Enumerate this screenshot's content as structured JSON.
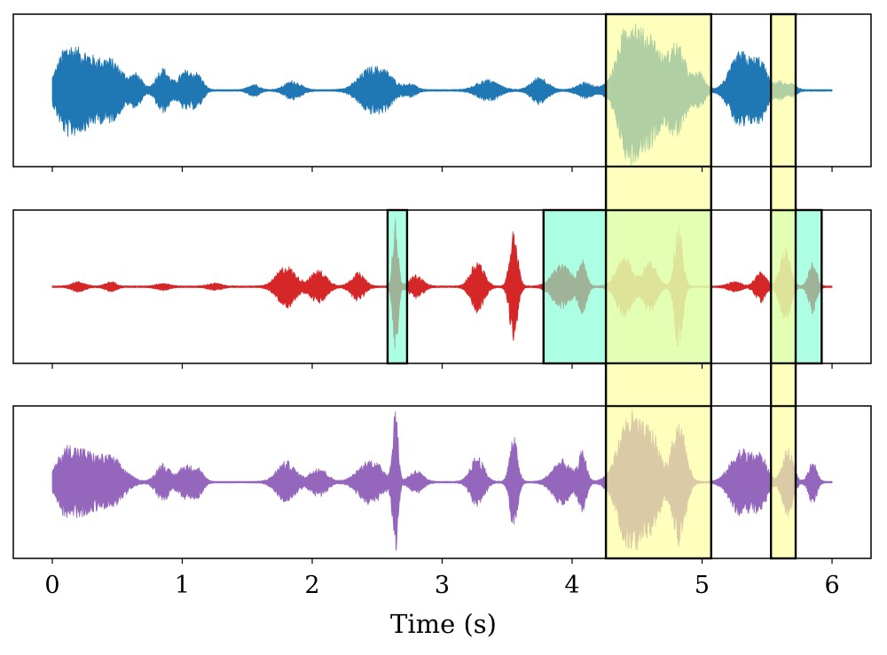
{
  "chart_data": {
    "type": "line",
    "description_style": "audio waveforms",
    "xlabel": "Time (s)",
    "xlim": [
      -0.3,
      6.3
    ],
    "xticks": [
      0,
      1,
      2,
      3,
      4,
      5,
      6
    ],
    "yticks_visible": false,
    "grid": false,
    "legend": "none",
    "panels": [
      {
        "color": "#1f77b4",
        "amplitude_scale": 1.0,
        "bursts": [
          {
            "t": 0.1,
            "w": 0.07,
            "a": 0.5
          },
          {
            "t": 0.24,
            "w": 0.08,
            "a": 0.42
          },
          {
            "t": 0.44,
            "w": 0.1,
            "a": 0.42
          },
          {
            "t": 0.65,
            "w": 0.04,
            "a": 0.18
          },
          {
            "t": 0.85,
            "w": 0.05,
            "a": 0.3
          },
          {
            "t": 1.02,
            "w": 0.05,
            "a": 0.25
          },
          {
            "t": 1.12,
            "w": 0.04,
            "a": 0.2
          },
          {
            "t": 1.55,
            "w": 0.04,
            "a": 0.08
          },
          {
            "t": 1.85,
            "w": 0.06,
            "a": 0.12
          },
          {
            "t": 2.45,
            "w": 0.09,
            "a": 0.3
          },
          {
            "t": 2.58,
            "w": 0.06,
            "a": 0.15
          },
          {
            "t": 2.75,
            "w": 0.05,
            "a": 0.08
          },
          {
            "t": 3.35,
            "w": 0.08,
            "a": 0.14
          },
          {
            "t": 3.75,
            "w": 0.06,
            "a": 0.18
          },
          {
            "t": 4.1,
            "w": 0.06,
            "a": 0.1
          },
          {
            "t": 4.45,
            "w": 0.09,
            "a": 1.0
          },
          {
            "t": 4.62,
            "w": 0.06,
            "a": 0.55
          },
          {
            "t": 4.8,
            "w": 0.07,
            "a": 0.65
          },
          {
            "t": 4.98,
            "w": 0.04,
            "a": 0.22
          },
          {
            "t": 5.3,
            "w": 0.08,
            "a": 0.52
          },
          {
            "t": 5.45,
            "w": 0.05,
            "a": 0.35
          },
          {
            "t": 5.6,
            "w": 0.04,
            "a": 0.12
          },
          {
            "t": 5.7,
            "w": 0.03,
            "a": 0.08
          }
        ],
        "highlights": [
          {
            "x0": 4.26,
            "x1": 5.07,
            "fill": "#ffff99"
          },
          {
            "x0": 5.53,
            "x1": 5.72,
            "fill": "#ffff99"
          }
        ]
      },
      {
        "color": "#d62728",
        "amplitude_scale": 1.0,
        "bursts": [
          {
            "t": 0.2,
            "w": 0.05,
            "a": 0.06
          },
          {
            "t": 0.45,
            "w": 0.04,
            "a": 0.06
          },
          {
            "t": 0.85,
            "w": 0.05,
            "a": 0.04
          },
          {
            "t": 1.25,
            "w": 0.05,
            "a": 0.04
          },
          {
            "t": 1.8,
            "w": 0.07,
            "a": 0.28
          },
          {
            "t": 2.05,
            "w": 0.06,
            "a": 0.22
          },
          {
            "t": 2.35,
            "w": 0.05,
            "a": 0.18
          },
          {
            "t": 2.64,
            "w": 0.02,
            "a": 0.9
          },
          {
            "t": 2.8,
            "w": 0.05,
            "a": 0.15
          },
          {
            "t": 3.27,
            "w": 0.05,
            "a": 0.35
          },
          {
            "t": 3.55,
            "w": 0.03,
            "a": 0.75
          },
          {
            "t": 3.92,
            "w": 0.07,
            "a": 0.3
          },
          {
            "t": 4.08,
            "w": 0.03,
            "a": 0.35
          },
          {
            "t": 4.4,
            "w": 0.06,
            "a": 0.4
          },
          {
            "t": 4.6,
            "w": 0.05,
            "a": 0.35
          },
          {
            "t": 4.82,
            "w": 0.03,
            "a": 0.85
          },
          {
            "t": 5.25,
            "w": 0.05,
            "a": 0.06
          },
          {
            "t": 5.45,
            "w": 0.04,
            "a": 0.2
          },
          {
            "t": 5.64,
            "w": 0.04,
            "a": 0.5
          },
          {
            "t": 5.85,
            "w": 0.03,
            "a": 0.35
          }
        ],
        "highlights": [
          {
            "x0": 2.58,
            "x1": 2.73,
            "fill": "#7fffd4"
          },
          {
            "x0": 3.78,
            "x1": 5.07,
            "fill": "#7fffd4"
          },
          {
            "x0": 5.53,
            "x1": 5.92,
            "fill": "#7fffd4"
          },
          {
            "x0": 4.26,
            "x1": 5.07,
            "fill": "#ffff99"
          },
          {
            "x0": 5.53,
            "x1": 5.72,
            "fill": "#ffff99"
          }
        ]
      },
      {
        "color": "#9467bd",
        "amplitude_scale": 1.0,
        "bursts": [
          {
            "t": 0.1,
            "w": 0.07,
            "a": 0.4
          },
          {
            "t": 0.24,
            "w": 0.08,
            "a": 0.35
          },
          {
            "t": 0.44,
            "w": 0.1,
            "a": 0.35
          },
          {
            "t": 0.85,
            "w": 0.05,
            "a": 0.25
          },
          {
            "t": 1.02,
            "w": 0.05,
            "a": 0.22
          },
          {
            "t": 1.12,
            "w": 0.04,
            "a": 0.18
          },
          {
            "t": 1.8,
            "w": 0.07,
            "a": 0.28
          },
          {
            "t": 2.05,
            "w": 0.06,
            "a": 0.2
          },
          {
            "t": 2.45,
            "w": 0.09,
            "a": 0.3
          },
          {
            "t": 2.64,
            "w": 0.02,
            "a": 1.0
          },
          {
            "t": 2.8,
            "w": 0.05,
            "a": 0.15
          },
          {
            "t": 3.27,
            "w": 0.05,
            "a": 0.35
          },
          {
            "t": 3.55,
            "w": 0.03,
            "a": 0.62
          },
          {
            "t": 3.92,
            "w": 0.07,
            "a": 0.3
          },
          {
            "t": 4.08,
            "w": 0.03,
            "a": 0.4
          },
          {
            "t": 4.45,
            "w": 0.09,
            "a": 0.95
          },
          {
            "t": 4.62,
            "w": 0.06,
            "a": 0.55
          },
          {
            "t": 4.82,
            "w": 0.05,
            "a": 0.85
          },
          {
            "t": 5.3,
            "w": 0.08,
            "a": 0.45
          },
          {
            "t": 5.45,
            "w": 0.05,
            "a": 0.32
          },
          {
            "t": 5.66,
            "w": 0.04,
            "a": 0.45
          },
          {
            "t": 5.85,
            "w": 0.03,
            "a": 0.3
          }
        ],
        "highlights": [
          {
            "x0": 4.26,
            "x1": 5.07,
            "fill": "#ffff99"
          },
          {
            "x0": 5.53,
            "x1": 5.72,
            "fill": "#ffff99"
          }
        ]
      }
    ],
    "span_highlights": [
      {
        "x0": 4.26,
        "x1": 5.07,
        "fill": "#ffff99"
      },
      {
        "x0": 5.53,
        "x1": 5.72,
        "fill": "#ffff99"
      }
    ],
    "signal_duration": 6.0
  }
}
